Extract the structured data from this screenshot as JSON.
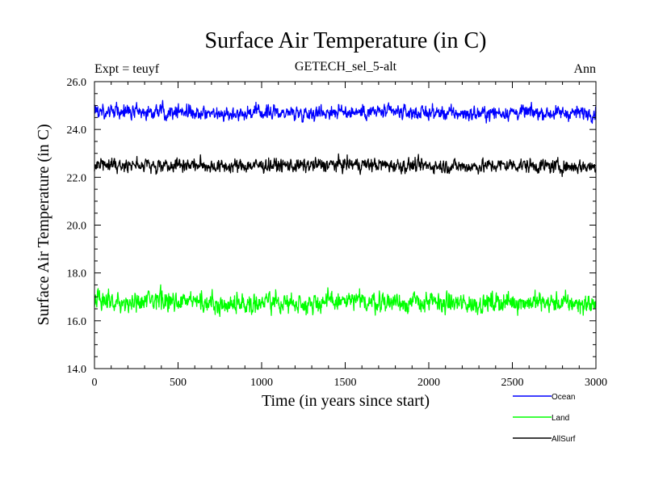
{
  "chart_data": {
    "type": "line",
    "title": "Surface Air Temperature (in C)",
    "subtitle": "GETECH_sel_5-alt",
    "left_label": "Expt = teuyf",
    "right_label": "Ann",
    "xlabel": "Time (in years since start)",
    "ylabel": "Surface Air Temperature (in C)",
    "xlim": [
      0,
      3000
    ],
    "ylim": [
      14.0,
      26.0
    ],
    "x_ticks": [
      "0",
      "500",
      "1000",
      "1500",
      "2000",
      "2500",
      "3000"
    ],
    "y_ticks": [
      "14.0",
      "16.0",
      "18.0",
      "20.0",
      "22.0",
      "24.0",
      "26.0"
    ],
    "grid": false,
    "legend_position": "bottom-right",
    "series": [
      {
        "name": "Ocean",
        "color": "#0000ff",
        "x": [
          0,
          250,
          500,
          750,
          1000,
          1250,
          1500,
          1750,
          2000,
          2250,
          2500,
          2750,
          3000
        ],
        "y": [
          24.75,
          24.7,
          24.78,
          24.65,
          24.72,
          24.7,
          24.75,
          24.72,
          24.7,
          24.65,
          24.72,
          24.68,
          24.7
        ]
      },
      {
        "name": "Land",
        "color": "#00ff00",
        "x": [
          0,
          250,
          500,
          750,
          1000,
          1250,
          1500,
          1750,
          2000,
          2250,
          2500,
          2750,
          3000
        ],
        "y": [
          16.85,
          16.75,
          16.85,
          16.7,
          16.75,
          16.75,
          16.8,
          16.8,
          16.75,
          16.7,
          16.8,
          16.75,
          16.7
        ]
      },
      {
        "name": "AllSurf",
        "color": "#000000",
        "x": [
          0,
          250,
          500,
          750,
          1000,
          1250,
          1500,
          1750,
          2000,
          2250,
          2500,
          2750,
          3000
        ],
        "y": [
          22.55,
          22.5,
          22.55,
          22.45,
          22.5,
          22.48,
          22.55,
          22.5,
          22.48,
          22.45,
          22.52,
          22.45,
          22.45
        ]
      }
    ]
  }
}
